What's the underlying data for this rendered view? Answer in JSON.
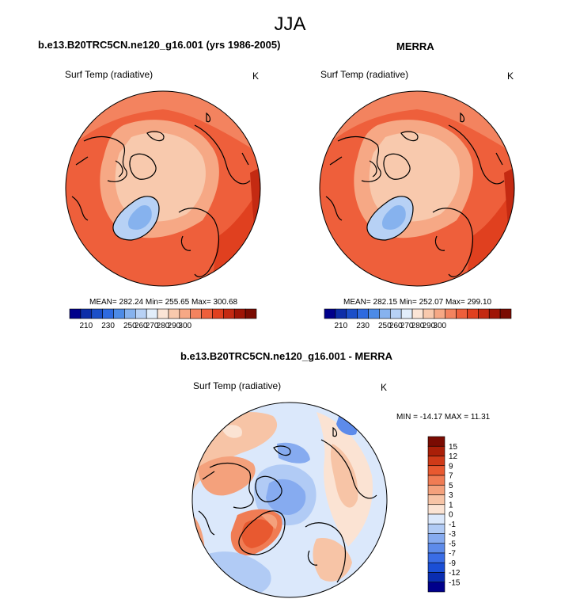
{
  "figure_title": "JJA",
  "colors": {
    "abs_scale": [
      "#00008b",
      "#0d2ea8",
      "#1b4fc9",
      "#2e6ae0",
      "#4d8be6",
      "#86b2ee",
      "#b7d1f5",
      "#e2eefb",
      "#fbe5d6",
      "#f8c9ad",
      "#f6a885",
      "#f3835f",
      "#ee5f3b",
      "#e0401f",
      "#c42a12",
      "#9f1506",
      "#7a0b02"
    ],
    "diff_scale": [
      "#00008b",
      "#0a2db1",
      "#1b4fd6",
      "#3a6de6",
      "#5d8bea",
      "#86abf0",
      "#b1cbf5",
      "#dbe8fb",
      "#fbe3d3",
      "#f7c4a6",
      "#f4a17c",
      "#f07c54",
      "#e85930",
      "#cf3a18",
      "#aa1f08",
      "#7a0b02"
    ]
  },
  "chart_data": [
    {
      "type": "heatmap",
      "panel": "left",
      "title": "b.e13.B20TRC5CN.ne120_g16.001 (yrs 1986-2005)",
      "left_label": "Surf Temp (radiative)",
      "right_label": "K",
      "stats": {
        "mean": 282.24,
        "min": 255.65,
        "max": 300.68
      },
      "stats_text": "MEAN= 282.24  Min= 255.65  Max= 300.68",
      "colorbar_ticks": [
        "210",
        "230",
        "250",
        "260",
        "270",
        "280",
        "290",
        "300"
      ],
      "colorbar_levels": [
        210,
        220,
        230,
        240,
        250,
        255,
        260,
        265,
        270,
        275,
        280,
        285,
        290,
        295,
        300,
        305
      ],
      "projection": "north polar stereographic"
    },
    {
      "type": "heatmap",
      "panel": "right",
      "title": "MERRA",
      "left_label": "Surf Temp (radiative)",
      "right_label": "K",
      "stats": {
        "mean": 282.15,
        "min": 252.07,
        "max": 299.1
      },
      "stats_text": "MEAN= 282.15  Min= 252.07  Max= 299.10",
      "colorbar_ticks": [
        "210",
        "230",
        "250",
        "260",
        "270",
        "280",
        "290",
        "300"
      ],
      "colorbar_levels": [
        210,
        220,
        230,
        240,
        250,
        255,
        260,
        265,
        270,
        275,
        280,
        285,
        290,
        295,
        300,
        305
      ],
      "projection": "north polar stereographic"
    },
    {
      "type": "heatmap",
      "panel": "difference",
      "title": "b.e13.B20TRC5CN.ne120_g16.001 - MERRA",
      "left_label": "Surf Temp (radiative)",
      "right_label": "K",
      "stats": {
        "min": -14.17,
        "max": 11.31
      },
      "stats_text": "MIN = -14.17 MAX =  11.31",
      "colorbar_labels": [
        "15",
        "12",
        "9",
        "7",
        "5",
        "3",
        "1",
        "0",
        "-1",
        "-3",
        "-5",
        "-7",
        "-9",
        "-12",
        "-15"
      ],
      "projection": "north polar stereographic"
    }
  ]
}
